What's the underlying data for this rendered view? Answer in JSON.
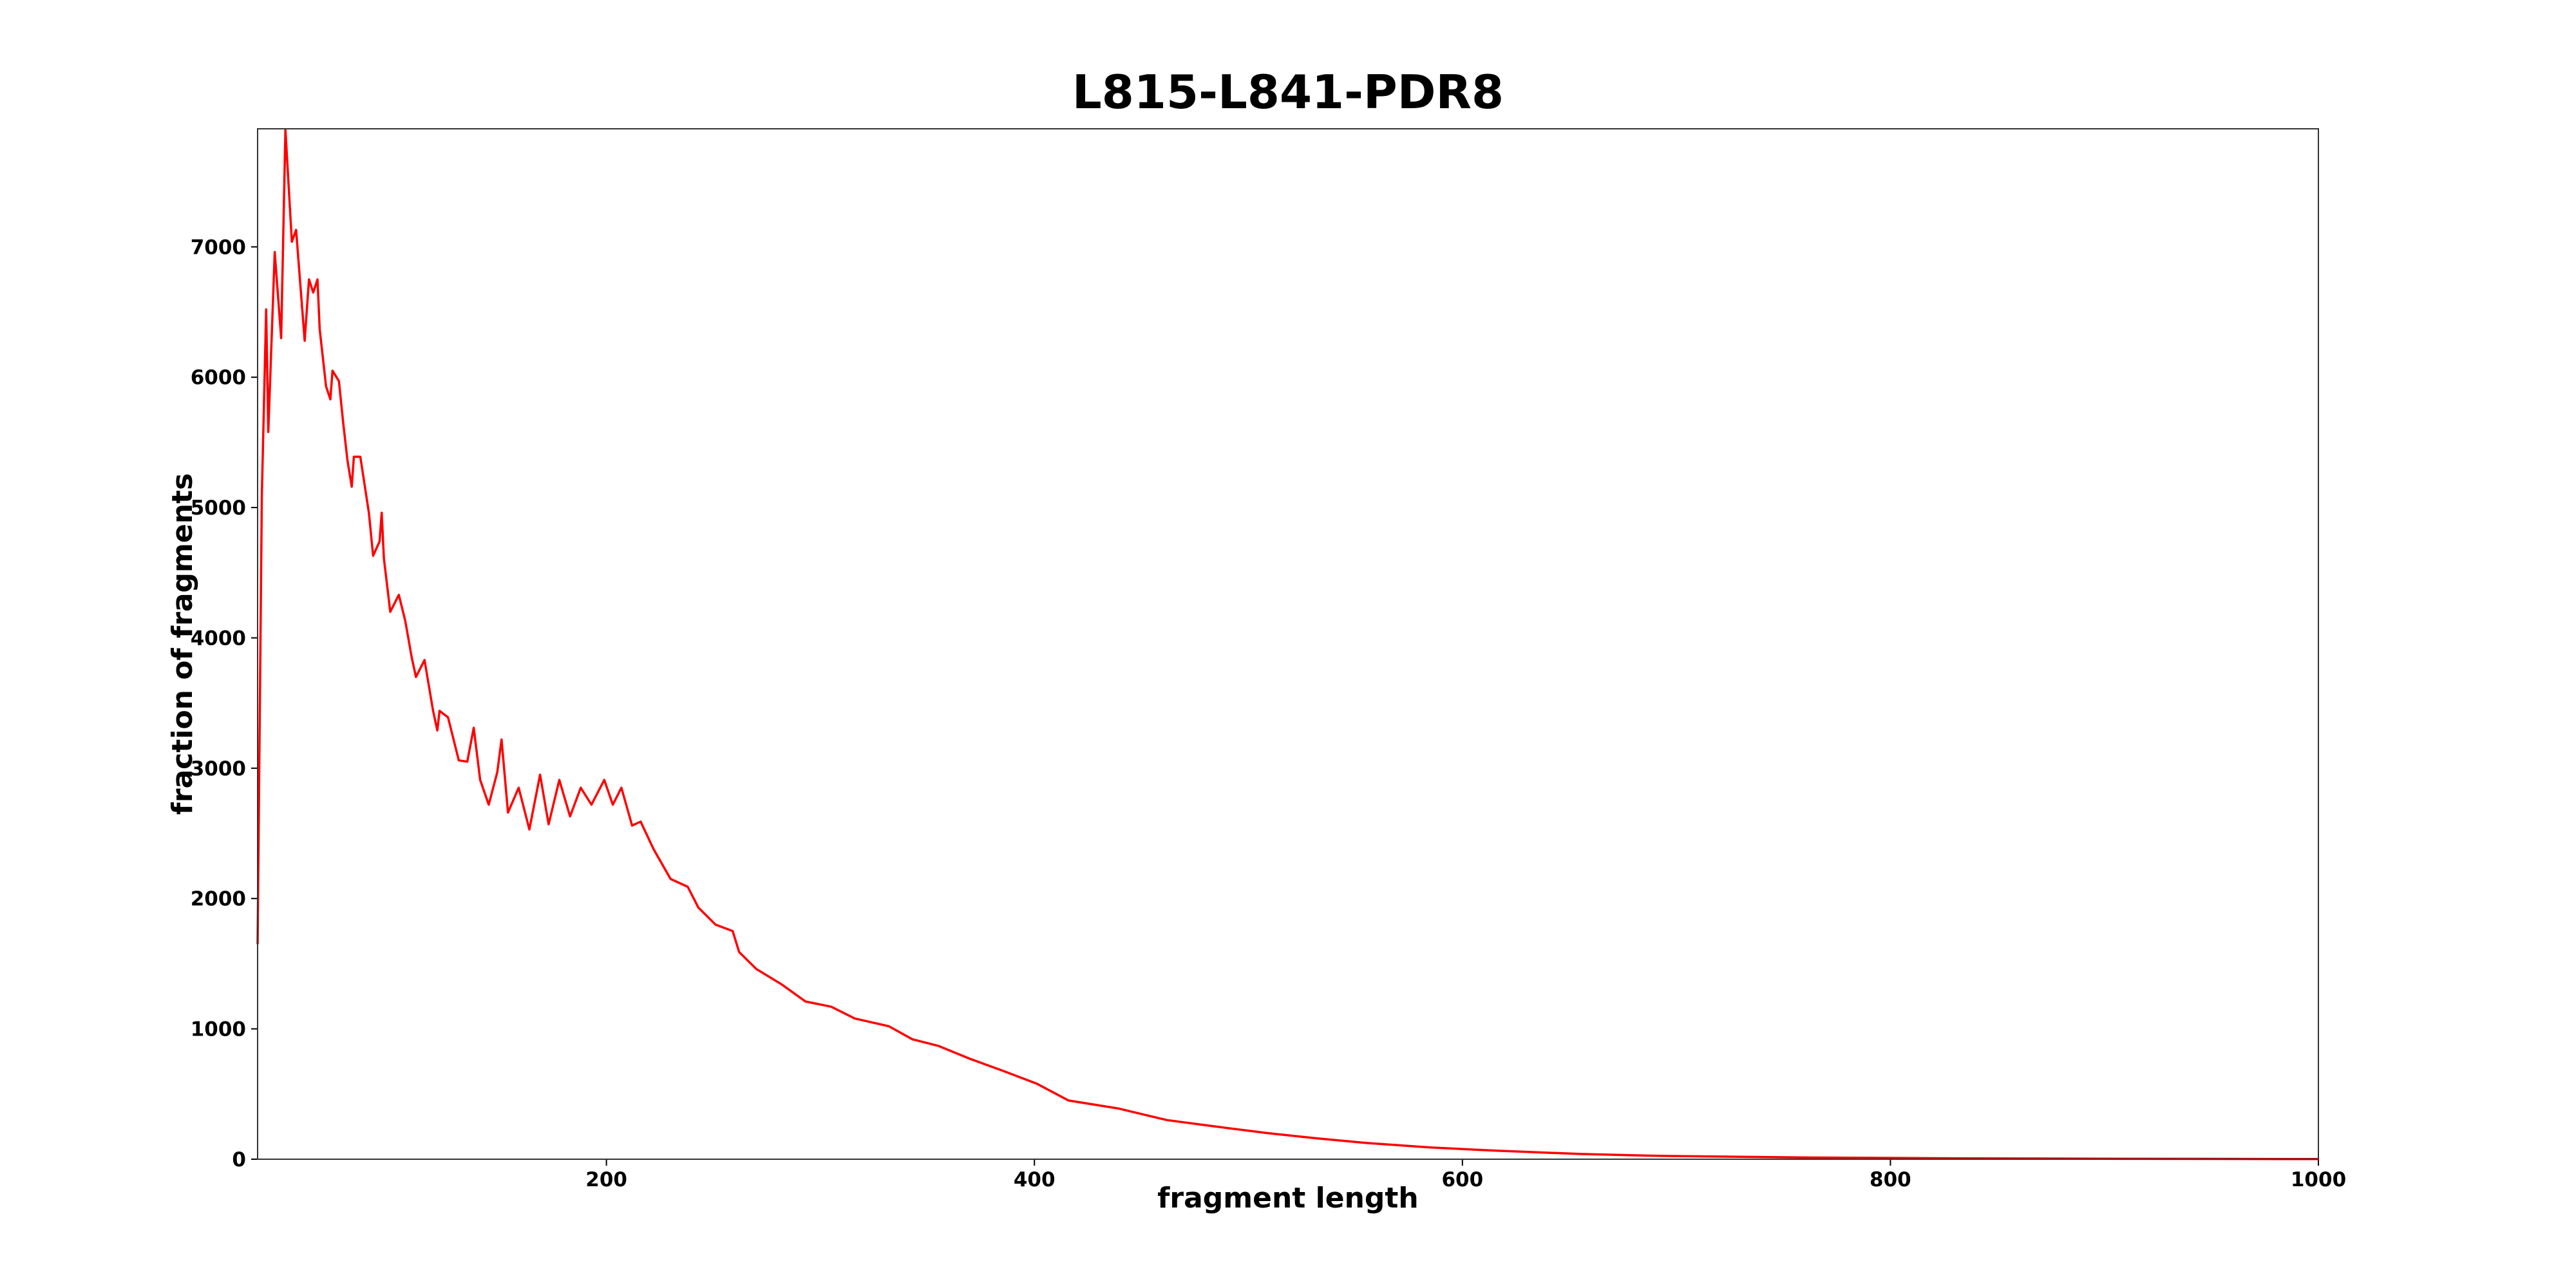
{
  "chart_data": {
    "type": "line",
    "title": "L815-L841-PDR8",
    "x_label": "fragment length",
    "y_label": "fraction of fragments",
    "color": "#ff0000",
    "x": [
      37,
      39,
      41,
      42,
      45,
      48,
      50,
      53,
      55,
      59,
      61,
      63,
      65,
      66,
      69,
      71,
      72,
      75,
      77,
      79,
      81,
      82,
      85,
      89,
      91,
      94,
      95,
      96,
      99,
      103,
      106,
      109,
      111,
      115,
      119,
      121,
      122,
      126,
      131,
      135,
      138,
      141,
      145,
      149,
      151,
      154,
      159,
      164,
      169,
      173,
      178,
      183,
      188,
      193,
      199,
      203,
      207,
      212,
      216,
      222,
      230,
      238,
      243,
      251,
      259,
      262,
      270,
      282,
      293,
      305,
      316,
      332,
      343,
      355,
      370,
      385,
      401,
      416,
      439,
      462,
      485,
      509,
      532,
      555,
      585,
      616,
      655,
      693,
      762,
      839,
      916,
      1000
    ],
    "values": [
      1650,
      5100,
      6520,
      5580,
      6960,
      6300,
      7900,
      7040,
      7130,
      6280,
      6750,
      6650,
      6750,
      6370,
      5930,
      5830,
      6050,
      5970,
      5650,
      5360,
      5160,
      5390,
      5390,
      4960,
      4630,
      4740,
      4960,
      4610,
      4200,
      4330,
      4130,
      3850,
      3700,
      3830,
      3440,
      3290,
      3440,
      3390,
      3060,
      3050,
      3310,
      2910,
      2720,
      2970,
      3220,
      2660,
      2850,
      2530,
      2950,
      2570,
      2910,
      2630,
      2850,
      2720,
      2910,
      2720,
      2850,
      2560,
      2590,
      2380,
      2150,
      2090,
      1930,
      1800,
      1750,
      1590,
      1460,
      1340,
      1210,
      1170,
      1080,
      1020,
      920,
      870,
      770,
      680,
      580,
      450,
      390,
      300,
      250,
      200,
      160,
      125,
      90,
      65,
      40,
      25,
      13,
      6,
      3,
      1
    ],
    "xlim": [
      37,
      1000
    ],
    "ylim": [
      0,
      7906
    ],
    "xticks": [
      200,
      400,
      600,
      800,
      1000
    ],
    "yticks": [
      0,
      1000,
      2000,
      3000,
      4000,
      5000,
      6000,
      7000
    ]
  }
}
